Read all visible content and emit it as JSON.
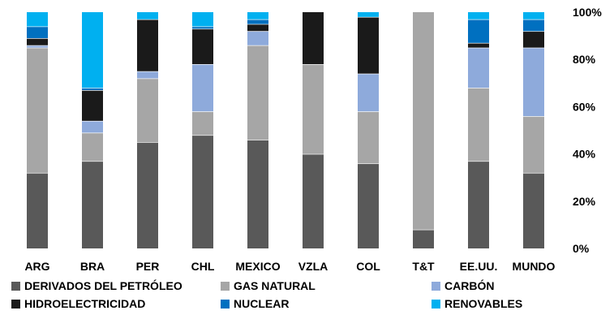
{
  "chart_data": {
    "type": "bar",
    "stacked": true,
    "percent": true,
    "categories": [
      "ARG",
      "BRA",
      "PER",
      "CHL",
      "MEXICO",
      "VZLA",
      "COL",
      "T&T",
      "EE.UU.",
      "MUNDO"
    ],
    "series": [
      {
        "name": "DERIVADOS DEL PETRÓLEO",
        "color": "#595959",
        "values": [
          32,
          37,
          45,
          48,
          46,
          40,
          36,
          8,
          37,
          32
        ]
      },
      {
        "name": "GAS NATURAL",
        "color": "#a6a6a6",
        "values": [
          53,
          12,
          27,
          10,
          40,
          38,
          22,
          92,
          31,
          24
        ]
      },
      {
        "name": "CARBÓN",
        "color": "#8eaadb",
        "values": [
          1,
          5,
          3,
          20,
          6,
          0,
          16,
          0,
          17,
          29
        ]
      },
      {
        "name": "HIDROELECTRICIDAD",
        "color": "#1a1a1a",
        "values": [
          3,
          13,
          22,
          15,
          3,
          22,
          24,
          0,
          2,
          7
        ]
      },
      {
        "name": "NUCLEAR",
        "color": "#0070c0",
        "values": [
          5,
          1,
          0,
          1,
          2,
          0,
          0,
          0,
          10,
          5
        ]
      },
      {
        "name": "RENOVABLES",
        "color": "#00b0f0",
        "values": [
          6,
          32,
          3,
          6,
          3,
          0,
          2,
          0,
          3,
          3
        ]
      }
    ],
    "yticks": [
      "0%",
      "20%",
      "40%",
      "60%",
      "80%",
      "100%"
    ],
    "ylim": [
      0,
      100
    ],
    "xlabel": "",
    "ylabel": "",
    "grid": false,
    "legend_position": "bottom"
  }
}
